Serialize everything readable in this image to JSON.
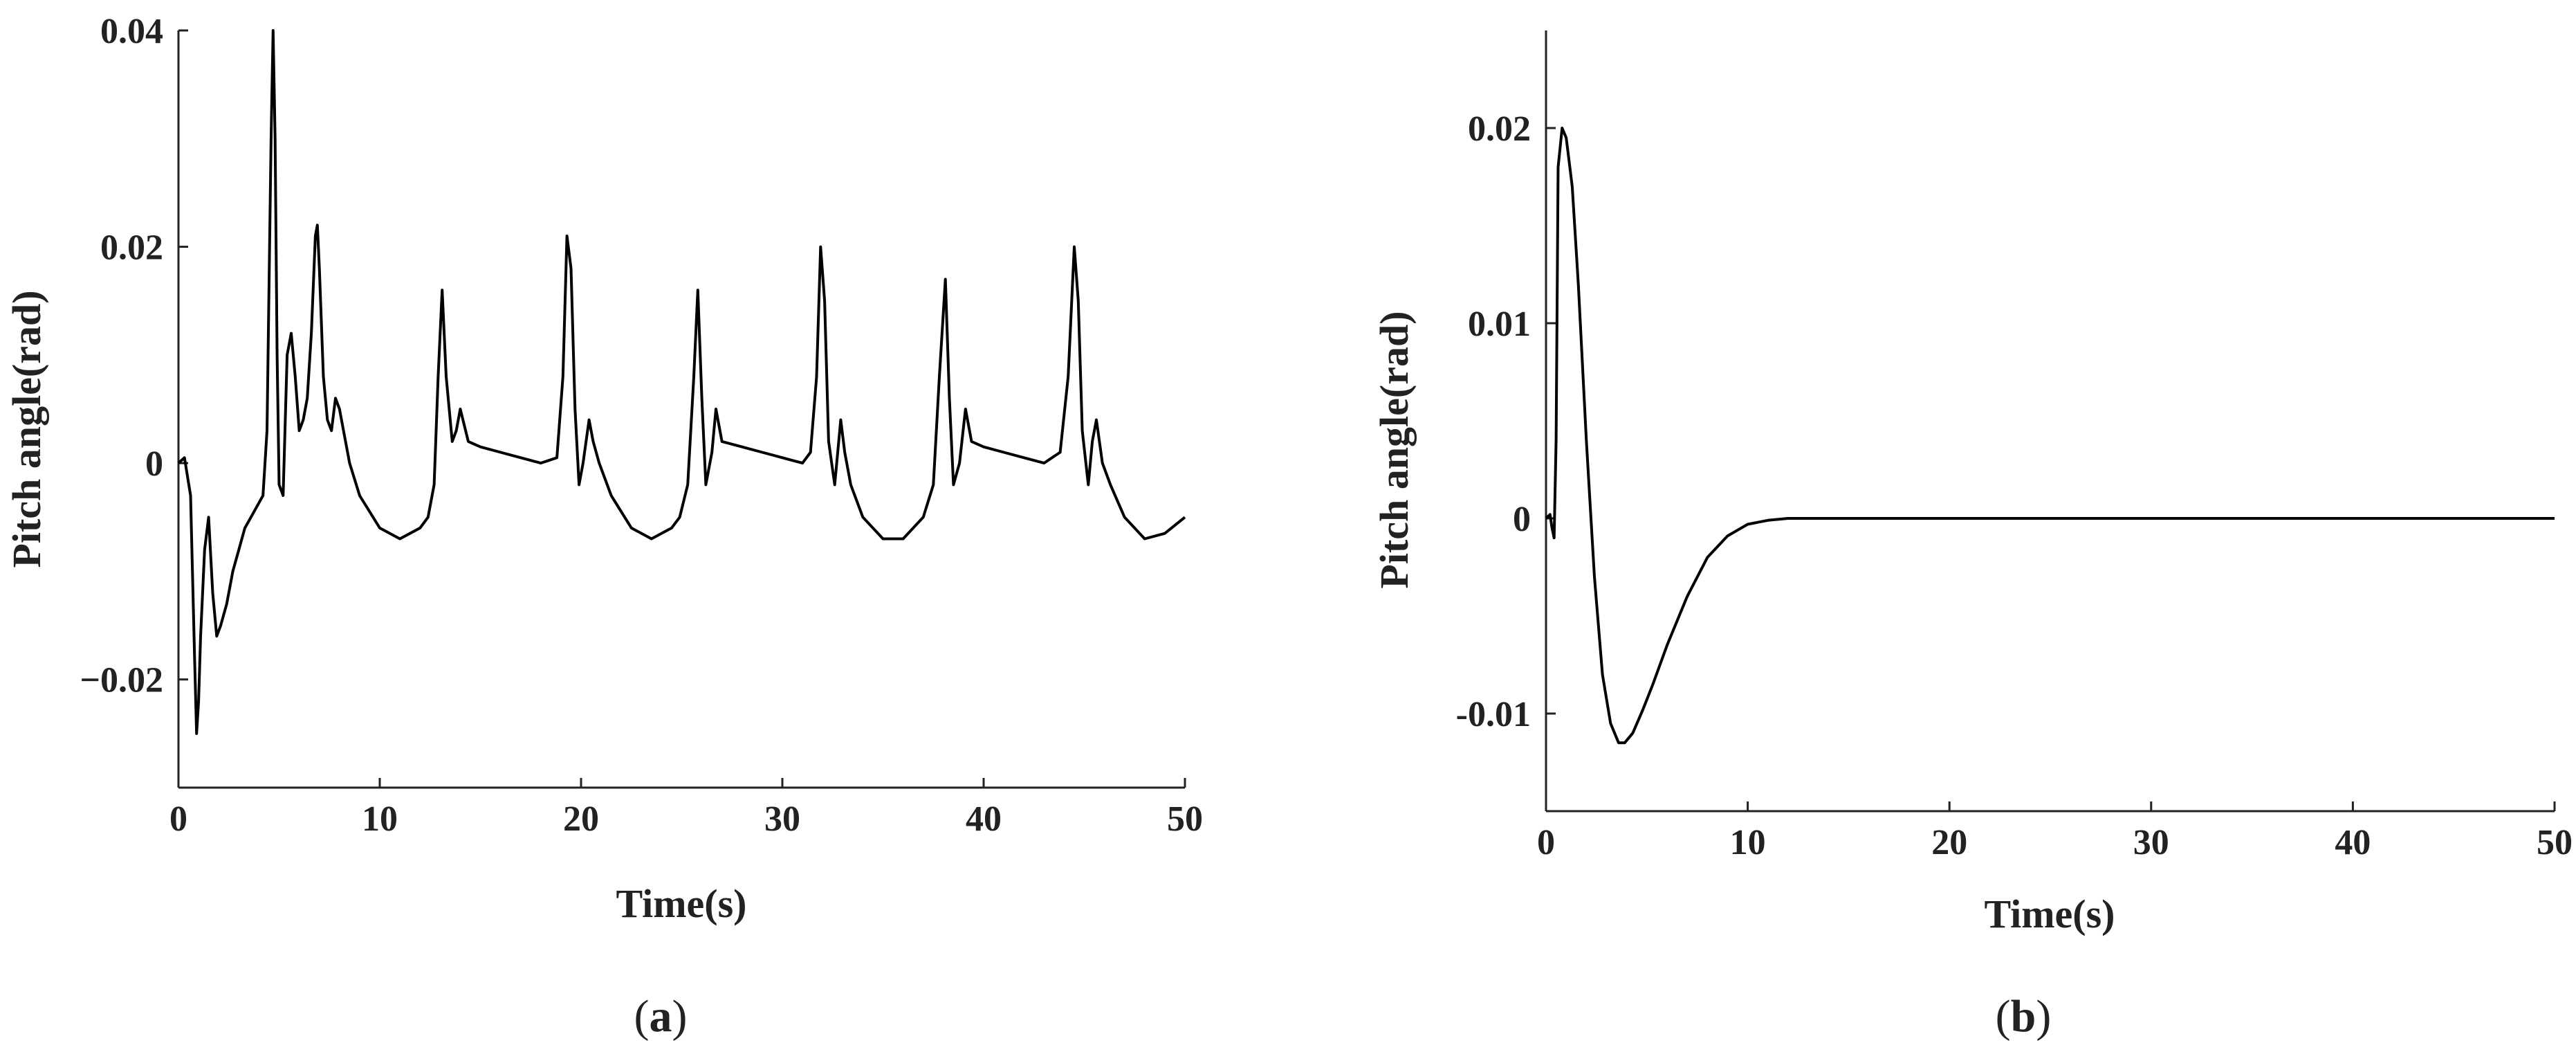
{
  "chart_data": [
    {
      "type": "line",
      "panel_label": "a",
      "xlabel": "Time(s)",
      "ylabel": "Pitch angle(rad)",
      "xlim": [
        0,
        50
      ],
      "ylim": [
        -0.03,
        0.04
      ],
      "xticks": [
        "0",
        "10",
        "20",
        "30",
        "40",
        "50"
      ],
      "xtick_values": [
        0,
        10,
        20,
        30,
        40,
        50
      ],
      "yticks": [
        "−0.02",
        "0",
        "0.02",
        "0.04"
      ],
      "ytick_values": [
        -0.02,
        0,
        0.02,
        0.04
      ],
      "grid": false,
      "series": [
        {
          "x": [
            0,
            0.3,
            0.6,
            0.8,
            0.9,
            1.0,
            1.1,
            1.3,
            1.5,
            1.7,
            1.9,
            2.1,
            2.4,
            2.7,
            3.0,
            3.3,
            3.6,
            3.9,
            4.2,
            4.4,
            4.6,
            4.7,
            4.8,
            4.9,
            5.0,
            5.2,
            5.4,
            5.6,
            5.8,
            6.0,
            6.2,
            6.4,
            6.6,
            6.8,
            6.9,
            7.0,
            7.2,
            7.4,
            7.6,
            7.8,
            8.0,
            8.2,
            8.5,
            9.0,
            10.0,
            11.0,
            11.5,
            12.0,
            12.4,
            12.7,
            12.9,
            13.1,
            13.3,
            13.6,
            13.8,
            14.0,
            14.4,
            15.0,
            16.0,
            17.0,
            18.0,
            18.8,
            19.1,
            19.3,
            19.5,
            19.7,
            19.9,
            20.1,
            20.4,
            20.6,
            20.9,
            21.5,
            22.5,
            23.5,
            24.5,
            24.9,
            25.3,
            25.6,
            25.8,
            26.0,
            26.2,
            26.5,
            26.7,
            27.0,
            28.0,
            29.0,
            30.0,
            31.0,
            31.4,
            31.7,
            31.9,
            32.1,
            32.3,
            32.6,
            32.9,
            33.1,
            33.4,
            34.0,
            35.0,
            36.0,
            37.0,
            37.5,
            37.8,
            38.1,
            38.3,
            38.5,
            38.8,
            39.1,
            39.4,
            40.0,
            41.0,
            42.0,
            43.0,
            43.8,
            44.2,
            44.5,
            44.7,
            44.9,
            45.2,
            45.4,
            45.6,
            45.9,
            46.3,
            47.0,
            48.0,
            49.0,
            50.0
          ],
          "y": [
            0.0,
            0.0005,
            -0.003,
            -0.018,
            -0.025,
            -0.022,
            -0.016,
            -0.008,
            -0.005,
            -0.012,
            -0.016,
            -0.015,
            -0.013,
            -0.01,
            -0.008,
            -0.006,
            -0.005,
            -0.004,
            -0.003,
            0.003,
            0.03,
            0.04,
            0.03,
            0.01,
            -0.002,
            -0.003,
            0.01,
            0.012,
            0.008,
            0.003,
            0.004,
            0.006,
            0.012,
            0.021,
            0.022,
            0.018,
            0.008,
            0.004,
            0.003,
            0.006,
            0.005,
            0.003,
            0.0,
            -0.003,
            -0.006,
            -0.007,
            -0.0065,
            -0.006,
            -0.005,
            -0.002,
            0.008,
            0.016,
            0.008,
            0.002,
            0.003,
            0.005,
            0.002,
            0.0015,
            0.001,
            0.0005,
            0.0,
            0.0005,
            0.008,
            0.021,
            0.018,
            0.005,
            -0.002,
            0.0,
            0.004,
            0.002,
            0.0,
            -0.003,
            -0.006,
            -0.007,
            -0.006,
            -0.005,
            -0.002,
            0.008,
            0.016,
            0.006,
            -0.002,
            0.001,
            0.005,
            0.002,
            0.0015,
            0.001,
            0.0005,
            0.0,
            0.001,
            0.008,
            0.02,
            0.015,
            0.002,
            -0.002,
            0.004,
            0.001,
            -0.002,
            -0.005,
            -0.007,
            -0.007,
            -0.005,
            -0.002,
            0.008,
            0.017,
            0.006,
            -0.002,
            0.0,
            0.005,
            0.002,
            0.0015,
            0.001,
            0.0005,
            0.0,
            0.001,
            0.008,
            0.02,
            0.015,
            0.003,
            -0.002,
            0.002,
            0.004,
            0.0,
            -0.002,
            -0.005,
            -0.007,
            -0.0065,
            -0.005
          ]
        }
      ]
    },
    {
      "type": "line",
      "panel_label": "b",
      "xlabel": "Time(s)",
      "ylabel": "Pitch angle(rad)",
      "xlim": [
        0,
        50
      ],
      "ylim": [
        -0.015,
        0.025
      ],
      "xticks": [
        "0",
        "10",
        "20",
        "30",
        "40",
        "50"
      ],
      "xtick_values": [
        0,
        10,
        20,
        30,
        40,
        50
      ],
      "yticks": [
        "-0.01",
        "0",
        "0.01",
        "0.02"
      ],
      "ytick_values": [
        -0.01,
        0,
        0.01,
        0.02
      ],
      "grid": false,
      "series": [
        {
          "x": [
            0,
            0.2,
            0.3,
            0.4,
            0.5,
            0.6,
            0.8,
            1.0,
            1.3,
            1.6,
            2.0,
            2.4,
            2.8,
            3.2,
            3.6,
            3.9,
            4.3,
            4.8,
            5.3,
            6.0,
            7.0,
            8.0,
            9.0,
            10.0,
            11.0,
            12.0,
            13.0,
            15.0,
            20.0,
            30.0,
            40.0,
            50.0
          ],
          "y": [
            0.0,
            0.0002,
            -0.0005,
            -0.001,
            0.004,
            0.018,
            0.02,
            0.0195,
            0.017,
            0.012,
            0.004,
            -0.003,
            -0.008,
            -0.0105,
            -0.0115,
            -0.0115,
            -0.011,
            -0.0098,
            -0.0085,
            -0.0065,
            -0.004,
            -0.002,
            -0.0009,
            -0.0003,
            -0.0001,
            0.0,
            0.0,
            0.0,
            0.0,
            0.0,
            0.0,
            0.0
          ]
        }
      ]
    }
  ]
}
